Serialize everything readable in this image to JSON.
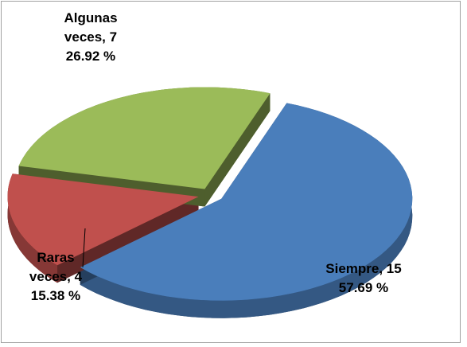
{
  "chart_data": {
    "type": "pie",
    "labels": [
      "Siempre, 15",
      "Raras veces, 4",
      "Algunas veces, 7"
    ],
    "values": [
      57.69,
      15.38,
      26.92
    ],
    "value_labels": [
      "57.69 %",
      "15.38 %",
      "26.92 %"
    ],
    "colors": [
      "#4a7ebb",
      "#c0504d",
      "#9bbb59"
    ]
  }
}
